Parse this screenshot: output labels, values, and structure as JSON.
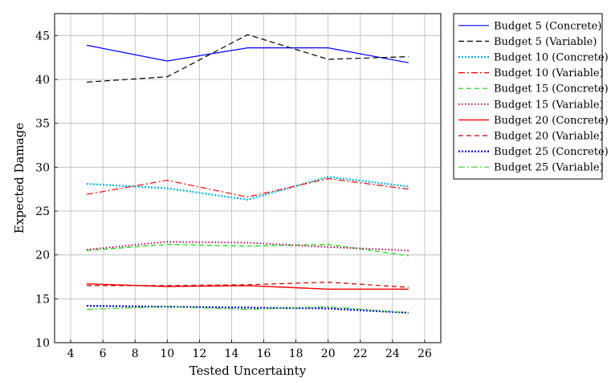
{
  "chart_data": {
    "type": "line",
    "xlabel": "Tested Uncertainty",
    "ylabel": "Expected Damage",
    "xlim": [
      3,
      27
    ],
    "ylim": [
      10,
      47.5
    ],
    "xticks": [
      4,
      6,
      8,
      10,
      12,
      14,
      16,
      18,
      20,
      22,
      24,
      26
    ],
    "yticks": [
      10,
      15,
      20,
      25,
      30,
      35,
      40,
      45
    ],
    "grid": true,
    "legend_position": "outside-right",
    "x": [
      5,
      10,
      15,
      20,
      25
    ],
    "series": [
      {
        "name": "Budget 5 (Concrete)",
        "values": [
          43.9,
          42.1,
          43.6,
          43.6,
          41.9
        ],
        "color": "#0000ff",
        "dash": "solid",
        "width": 1.2
      },
      {
        "name": "Budget 5 (Variable)",
        "values": [
          39.7,
          40.3,
          45.1,
          42.3,
          42.6
        ],
        "color": "#000000",
        "dash": "7,4",
        "width": 1.2
      },
      {
        "name": "Budget 10 (Concrete)",
        "values": [
          28.1,
          27.6,
          26.3,
          28.9,
          27.8
        ],
        "color": "#00b4e6",
        "dash": "2,2",
        "width": 2.2
      },
      {
        "name": "Budget 10 (Variable)",
        "values": [
          26.9,
          28.5,
          26.6,
          28.7,
          27.5
        ],
        "color": "#ff0000",
        "dash": "8,3,2,3",
        "width": 1.2
      },
      {
        "name": "Budget 15 (Concrete)",
        "values": [
          20.5,
          21.2,
          21.0,
          21.2,
          19.9
        ],
        "color": "#00e000",
        "dash": "6,4",
        "width": 1.2
      },
      {
        "name": "Budget 15 (Variable)",
        "values": [
          20.6,
          21.5,
          21.4,
          20.9,
          20.5
        ],
        "color": "#c00060",
        "dash": "1.5,2.5",
        "width": 2.0
      },
      {
        "name": "Budget 20 (Concrete)",
        "values": [
          16.7,
          16.4,
          16.5,
          16.1,
          16.1
        ],
        "color": "#ff0000",
        "dash": "solid",
        "width": 1.4
      },
      {
        "name": "Budget 20 (Variable)",
        "values": [
          16.5,
          16.5,
          16.6,
          16.9,
          16.3
        ],
        "color": "#c00000",
        "dash": "6,4",
        "width": 1.2
      },
      {
        "name": "Budget 25 (Concrete)",
        "values": [
          14.2,
          14.1,
          14.0,
          13.9,
          13.4
        ],
        "color": "#0000ee",
        "dash": "2,2",
        "width": 2.2
      },
      {
        "name": "Budget 25 (Variable)",
        "values": [
          13.8,
          14.1,
          13.8,
          14.1,
          13.4
        ],
        "color": "#33cc33",
        "dash": "8,3,2,3",
        "width": 1.2
      }
    ]
  }
}
